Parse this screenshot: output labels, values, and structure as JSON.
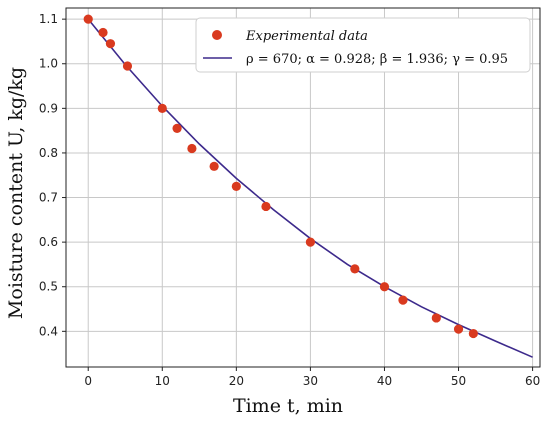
{
  "chart_data": {
    "type": "scatter",
    "xlabel": "Time t, min",
    "ylabel": "Moisture content U, kg/kg",
    "xlim": [
      -3,
      61
    ],
    "ylim": [
      0.32,
      1.125
    ],
    "xticks": [
      "0",
      "10",
      "20",
      "30",
      "40",
      "50",
      "60"
    ],
    "yticks": [
      "0.4",
      "0.5",
      "0.6",
      "0.7",
      "0.8",
      "0.9",
      "1.0",
      "1.1"
    ],
    "grid": true,
    "legend_position": "top-right",
    "series": [
      {
        "name": "Experimental data",
        "kind": "scatter",
        "color": "#d93a1f",
        "x": [
          0,
          2,
          3,
          5.3,
          10,
          12,
          14,
          17,
          20,
          24,
          30,
          36,
          40,
          42.5,
          47,
          50,
          52
        ],
        "y": [
          1.1,
          1.07,
          1.045,
          0.995,
          0.9,
          0.855,
          0.81,
          0.77,
          0.725,
          0.68,
          0.6,
          0.54,
          0.5,
          0.47,
          0.43,
          0.405,
          0.395
        ]
      },
      {
        "name": "ρ = 670;  α = 0.928;  β = 1.936;  γ = 0.95",
        "kind": "line",
        "color": "#3d2a8c",
        "x": [
          0,
          5,
          10,
          15,
          20,
          25,
          30,
          35,
          40,
          45,
          50,
          55,
          60
        ],
        "y": [
          1.1,
          0.998,
          0.905,
          0.82,
          0.743,
          0.673,
          0.608,
          0.55,
          0.5,
          0.455,
          0.415,
          0.378,
          0.342
        ]
      }
    ]
  }
}
